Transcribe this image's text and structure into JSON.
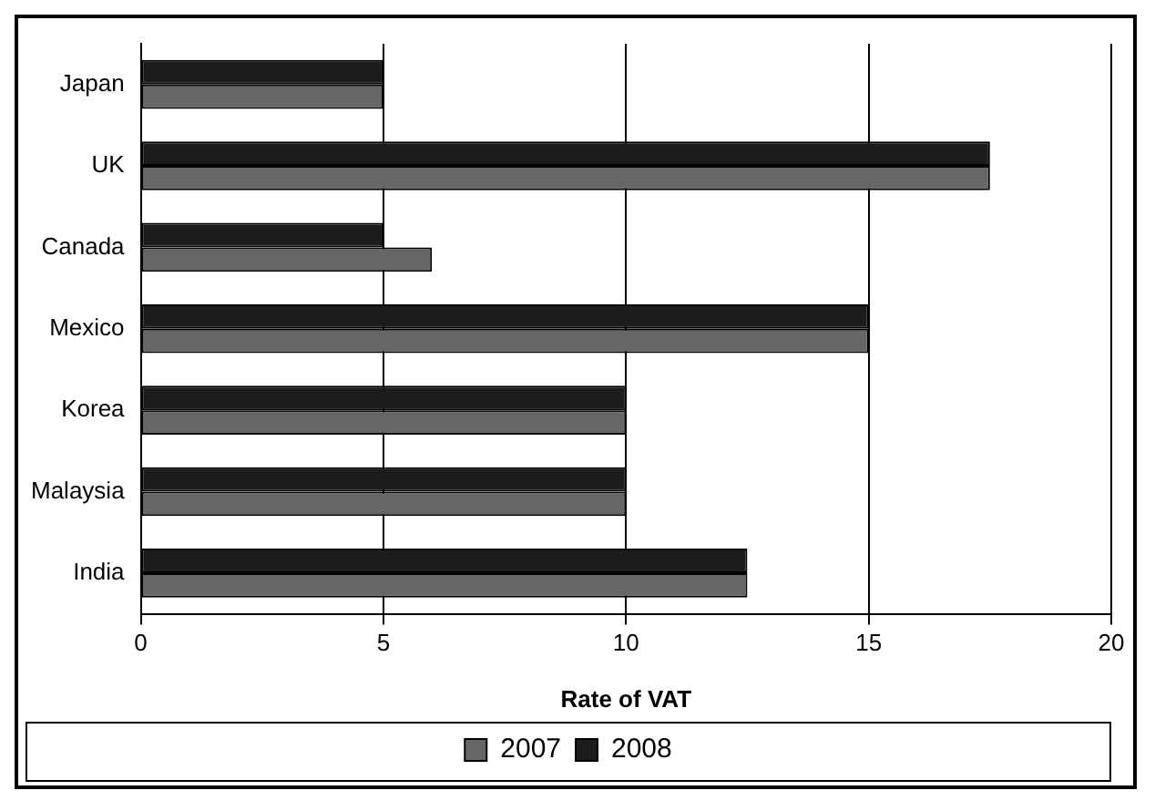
{
  "chart_data": {
    "type": "bar",
    "orientation": "horizontal",
    "xlabel": "Rate of VAT",
    "categories": [
      "Japan",
      "UK",
      "Canada",
      "Mexico",
      "Korea",
      "Malaysia",
      "India"
    ],
    "series": [
      {
        "name": "2007",
        "color": "#666666",
        "values": [
          5,
          17.5,
          6,
          15,
          10,
          10,
          12.5
        ]
      },
      {
        "name": "2008",
        "color": "#1c1c1c",
        "values": [
          5,
          17.5,
          5,
          15,
          10,
          10,
          12.5
        ]
      }
    ],
    "xlim": [
      0,
      20
    ],
    "xticks": [
      0,
      5,
      10,
      15,
      20
    ],
    "grid": "x",
    "legend": "bottom"
  }
}
